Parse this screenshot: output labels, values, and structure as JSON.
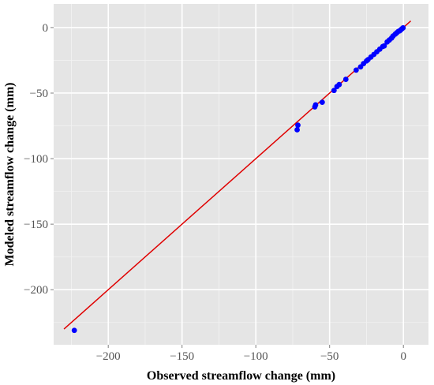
{
  "chart_data": {
    "type": "scatter",
    "title": "",
    "xlabel": "Observed streamflow change (mm)",
    "ylabel": "Modeled streamflow change (mm)",
    "xlim": [
      -237,
      17
    ],
    "ylim": [
      -242,
      18
    ],
    "x_ticks": [
      -200,
      -150,
      -100,
      -50,
      0
    ],
    "y_ticks": [
      0,
      -50,
      -100,
      -150,
      -200
    ],
    "x_tick_labels": [
      "−200",
      "−150",
      "−100",
      "−50",
      "0"
    ],
    "y_tick_labels": [
      "0",
      "−50",
      "−100",
      "−150",
      "−200"
    ],
    "grid": true,
    "legend": "none",
    "colors": {
      "panel": "#e5e5e5",
      "grid": "#ffffff",
      "points": "#0000ff",
      "line": "#e00000"
    },
    "reference_line": {
      "x": [
        -230,
        5
      ],
      "y": [
        -230,
        5
      ]
    },
    "points": {
      "x": [
        -223,
        -72,
        -71.5,
        -60,
        -59.5,
        -55,
        -47,
        -45,
        -43.5,
        -39,
        -32,
        -29,
        -27,
        -25,
        -24,
        -22,
        -20,
        -18,
        -16,
        -14,
        -13,
        -11,
        -9.5,
        -8,
        -7,
        -5.5,
        -4.5,
        -3.5,
        -2.5,
        -1.8,
        -1.2,
        -0.6,
        -0.2
      ],
      "y": [
        -231,
        -78,
        -74.5,
        -60.5,
        -59,
        -57,
        -48,
        -45,
        -43.5,
        -39.5,
        -32.5,
        -30,
        -27.5,
        -25.5,
        -24.5,
        -22.5,
        -20.5,
        -18.5,
        -16.5,
        -14.5,
        -14,
        -11,
        -9.5,
        -8,
        -6.5,
        -5,
        -4,
        -3,
        -2.5,
        -1.8,
        -1.2,
        -0.6,
        -0.2
      ]
    }
  }
}
